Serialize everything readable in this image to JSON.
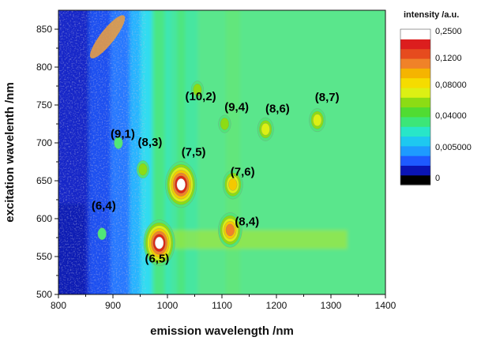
{
  "chart_data": {
    "type": "heatmap",
    "title": "",
    "xlabel": "emission wavelength /nm",
    "ylabel": "excitation wavelenth /nm",
    "xlim": [
      800,
      1400
    ],
    "ylim": [
      500,
      875
    ],
    "x_ticks": [
      "800",
      "900",
      "1000",
      "1100",
      "1200",
      "1300",
      "1400"
    ],
    "y_ticks": [
      "500",
      "550",
      "600",
      "650",
      "700",
      "750",
      "800",
      "850"
    ],
    "grid": false,
    "legend": {
      "title": "intensity /a.u.",
      "placement": "right",
      "labels": [
        "0,2500",
        "0,1200",
        "0,08000",
        "0,04000",
        "0,005000",
        "0"
      ],
      "colors": [
        "#000000",
        "#0a14b4",
        "#1e5aff",
        "#1e9bff",
        "#1ec8f0",
        "#28e6c8",
        "#3ce678",
        "#50dc32",
        "#8cdc14",
        "#dcf014",
        "#f5dc00",
        "#f5b400",
        "#f08228",
        "#e64b1e",
        "#dc1e1e",
        "#ffffff"
      ]
    },
    "peaks": [
      {
        "label": "(6,5)",
        "x": 985,
        "y": 568,
        "intensity": 0.26
      },
      {
        "label": "(7,5)",
        "x": 1025,
        "y": 645,
        "intensity": 0.25
      },
      {
        "label": "(8,4)",
        "x": 1115,
        "y": 585,
        "intensity": 0.2
      },
      {
        "label": "(8,3)",
        "x": 955,
        "y": 665,
        "intensity": 0.06
      },
      {
        "label": "(7,6)",
        "x": 1120,
        "y": 645,
        "intensity": 0.13
      },
      {
        "label": "(9,4)",
        "x": 1105,
        "y": 725,
        "intensity": 0.06
      },
      {
        "label": "(8,6)",
        "x": 1180,
        "y": 718,
        "intensity": 0.08
      },
      {
        "label": "(8,7)",
        "x": 1275,
        "y": 730,
        "intensity": 0.08
      },
      {
        "label": "(6,4)",
        "x": 880,
        "y": 580,
        "intensity": 0.006
      },
      {
        "label": "(9,1)",
        "x": 910,
        "y": 700,
        "intensity": 0.005
      },
      {
        "label": "(10,2)",
        "x": 1055,
        "y": 770,
        "intensity": 0.04
      }
    ],
    "annotations": [
      {
        "text": "(9,1)",
        "x": 918,
        "y": 707
      },
      {
        "text": "(8,3)",
        "x": 968,
        "y": 696
      },
      {
        "text": "(10,2)",
        "x": 1061,
        "y": 756
      },
      {
        "text": "(9,4)",
        "x": 1127,
        "y": 742
      },
      {
        "text": "(8,6)",
        "x": 1202,
        "y": 740
      },
      {
        "text": "(8,7)",
        "x": 1293,
        "y": 755
      },
      {
        "text": "(7,5)",
        "x": 1048,
        "y": 683
      },
      {
        "text": "(7,6)",
        "x": 1138,
        "y": 657
      },
      {
        "text": "(6,4)",
        "x": 883,
        "y": 612
      },
      {
        "text": "(8,4)",
        "x": 1146,
        "y": 591
      },
      {
        "text": "(6,5)",
        "x": 981,
        "y": 542
      }
    ]
  }
}
